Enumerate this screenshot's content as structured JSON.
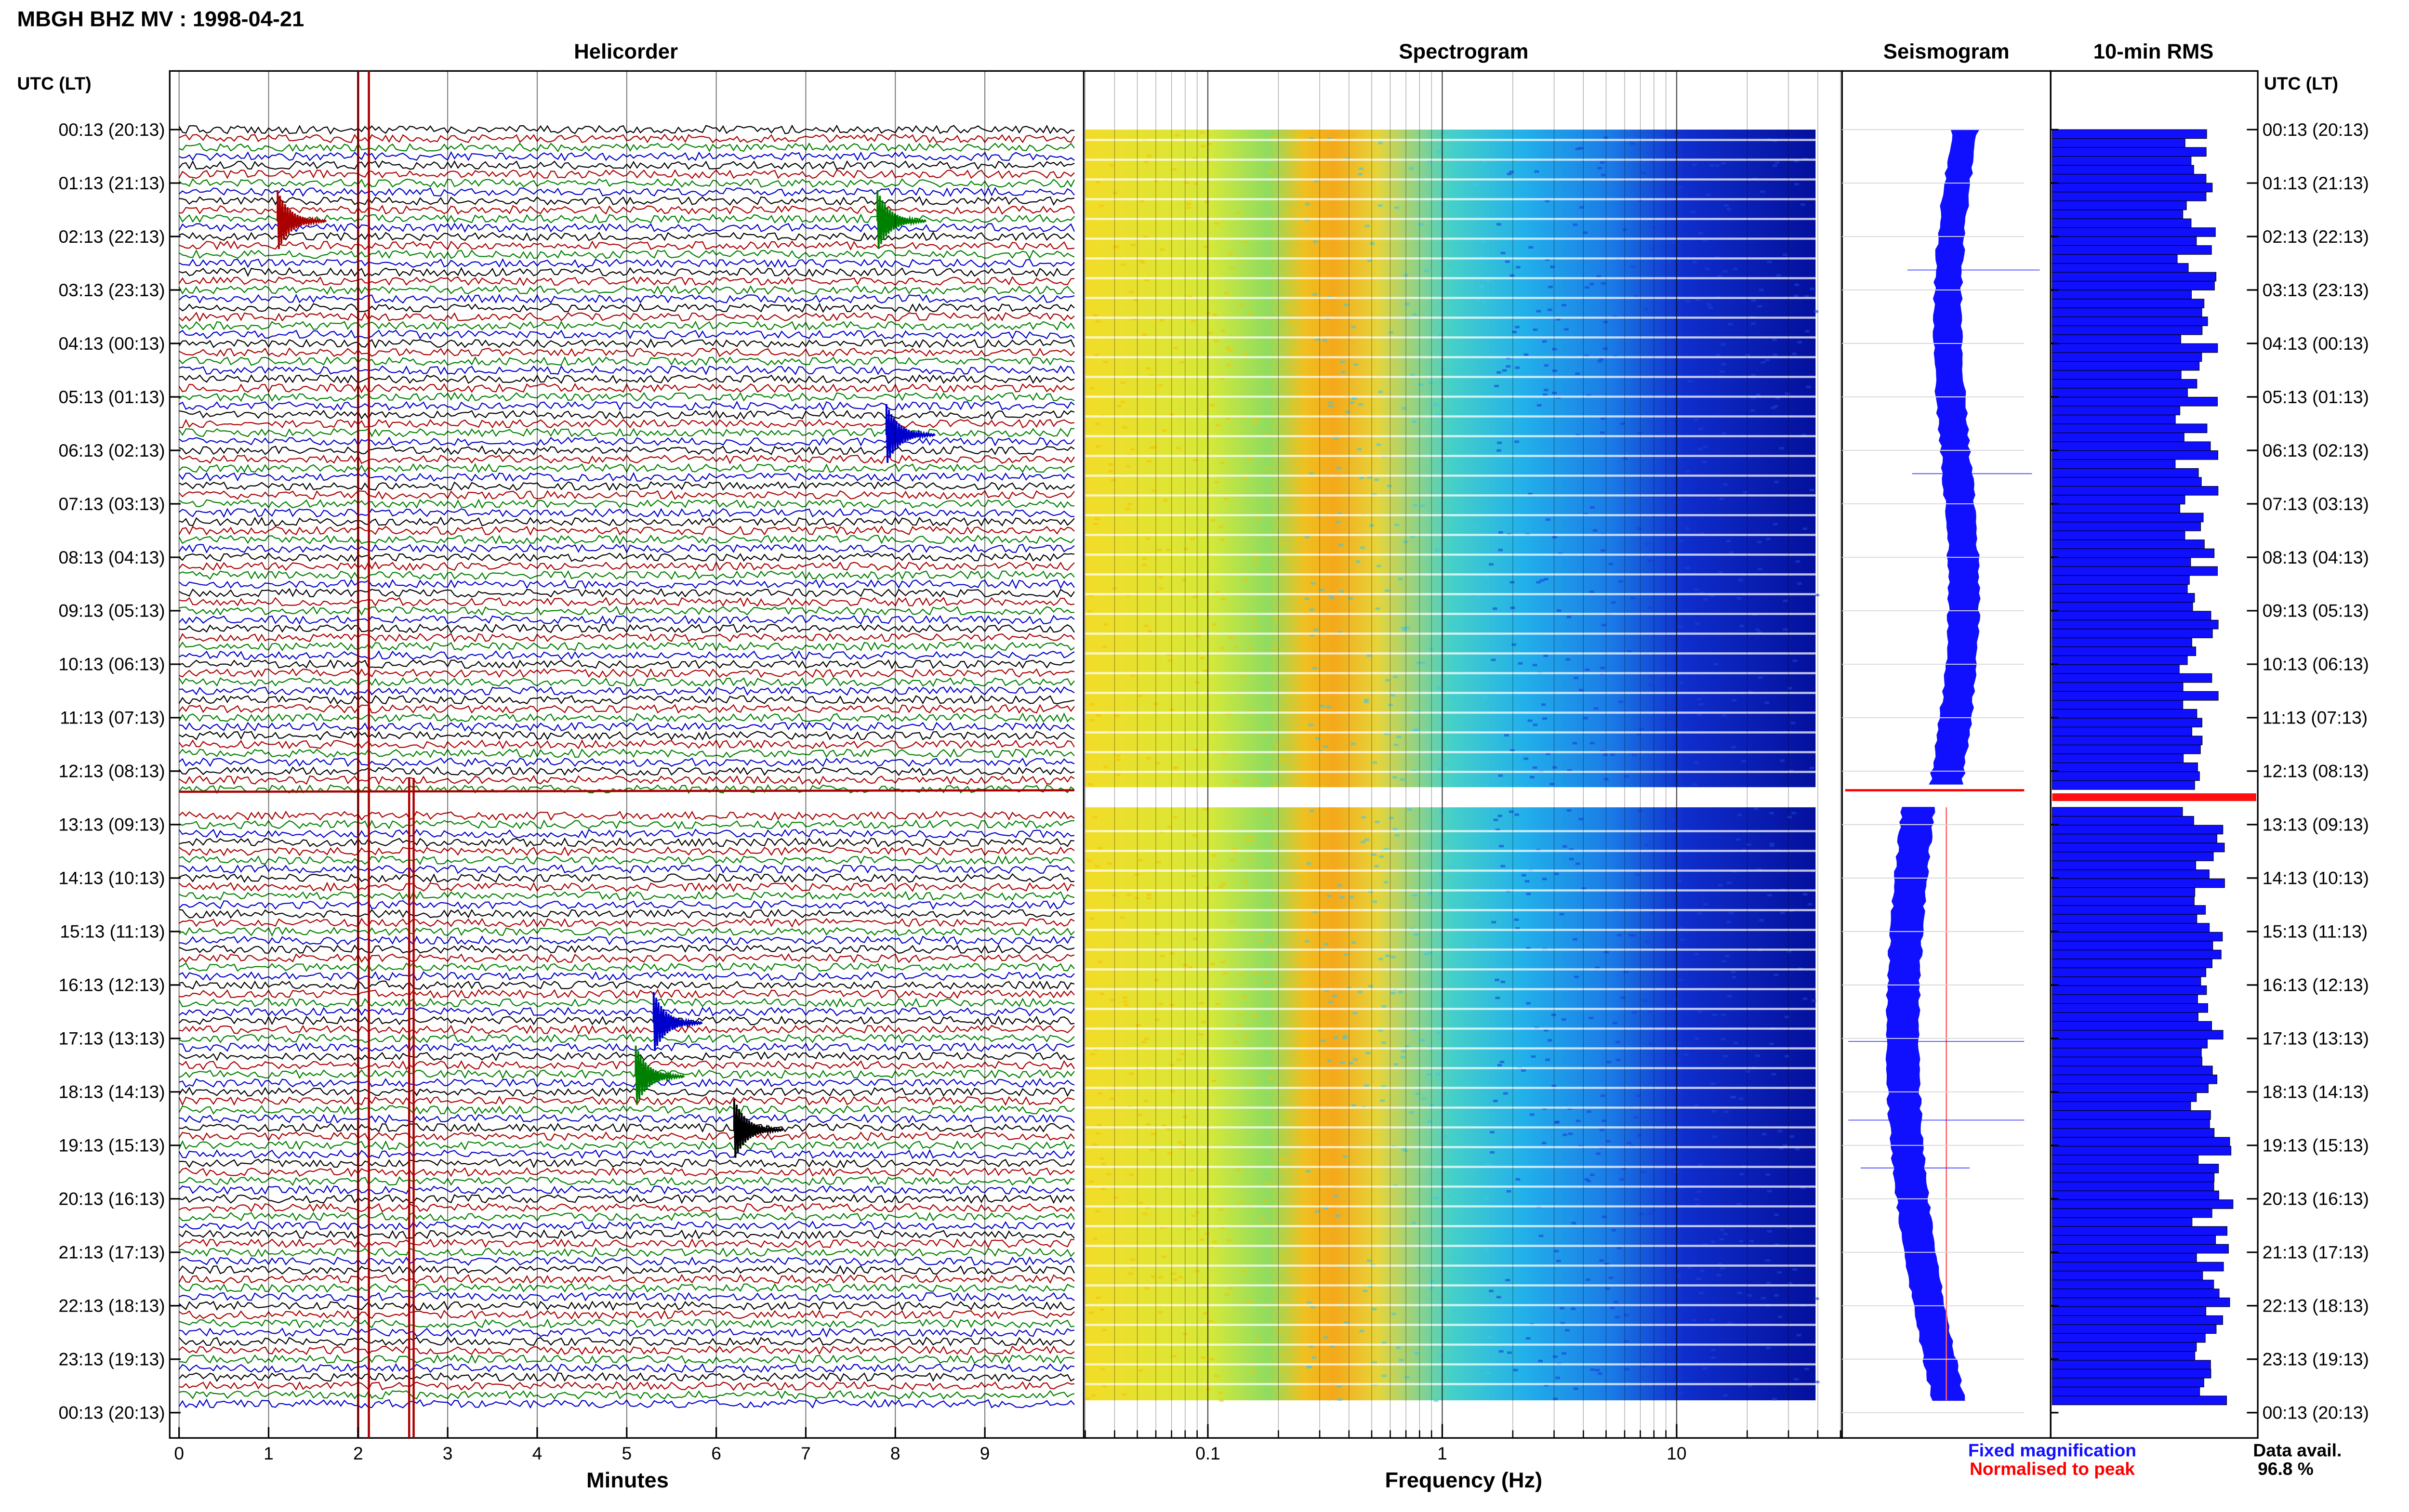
{
  "chart_data": {
    "type": "heatmap",
    "title": "MBGH BHZ MV : 1998-04-21",
    "time_axis_label": "UTC (LT)",
    "row_labels": [
      "00:13 (20:13)",
      "01:13 (21:13)",
      "02:13 (22:13)",
      "03:13 (23:13)",
      "04:13 (00:13)",
      "05:13 (01:13)",
      "06:13 (02:13)",
      "07:13 (03:13)",
      "08:13 (04:13)",
      "09:13 (05:13)",
      "10:13 (06:13)",
      "11:13 (07:13)",
      "12:13 (08:13)",
      "13:13 (09:13)",
      "14:13 (10:13)",
      "15:13 (11:13)",
      "16:13 (12:13)",
      "17:13 (13:13)",
      "18:13 (14:13)",
      "19:13 (15:13)",
      "20:13 (16:13)",
      "21:13 (17:13)",
      "22:13 (18:13)",
      "23:13 (19:13)",
      "00:13 (20:13)"
    ],
    "panels": {
      "helicorder": {
        "title": "Helicorder",
        "xlabel": "Minutes",
        "x_ticks": [
          "0",
          "1",
          "2",
          "3",
          "4",
          "5",
          "6",
          "7",
          "8",
          "9"
        ],
        "xlim": [
          0,
          10
        ],
        "trace_colors": [
          "#000000",
          "#aa0000",
          "#008000",
          "#0000cc"
        ],
        "events_minutes": [
          {
            "row": 2,
            "minute": 1.1,
            "color": "#aa0000"
          },
          {
            "row": 2,
            "minute": 7.8,
            "color": "#008000"
          },
          {
            "row": 6,
            "minute": 7.9,
            "color": "#0000cc"
          },
          {
            "row": 17,
            "minute": 5.3,
            "color": "#0000cc"
          },
          {
            "row": 18,
            "minute": 5.1,
            "color": "#008000"
          },
          {
            "row": 19,
            "minute": 6.2,
            "color": "#000000"
          }
        ]
      },
      "spectrogram": {
        "title": "Spectrogram",
        "xlabel": "Frequency (Hz)",
        "x_ticks": [
          "0.1",
          "1",
          "10"
        ],
        "xlim_hz": [
          0.03,
          50
        ],
        "x_scale": "log"
      },
      "seismogram": {
        "title": "Seismogram"
      },
      "rms": {
        "title": "10-min RMS"
      }
    },
    "legend": {
      "fixed": "Fixed magnification",
      "normalised": "Normalised to peak",
      "fixed_color": "#1010ff",
      "normalised_color": "#ff0000"
    },
    "data_availability": {
      "label": "Data avail.",
      "value": "96.8 %"
    },
    "gap": {
      "start_row": 12.3,
      "end_row": 12.85
    }
  }
}
